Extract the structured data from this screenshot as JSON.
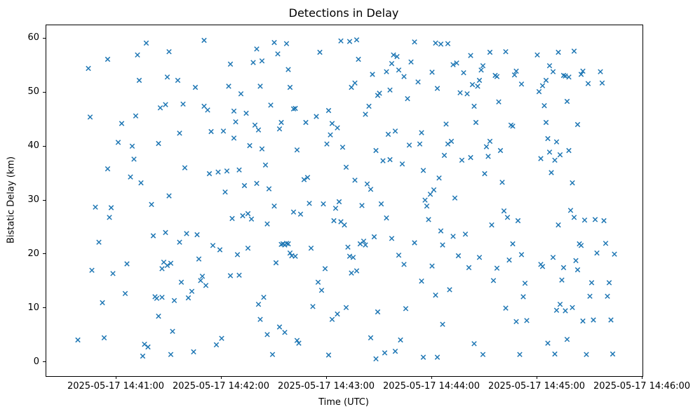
{
  "figure": {
    "background": "#ffffff"
  },
  "chart_data": {
    "type": "scatter",
    "title": "Detections in Delay",
    "xlabel": "Time (UTC)",
    "ylabel": "Bistatic Delay (km)",
    "marker": "x",
    "marker_color": "#1f77b4",
    "grid": false,
    "legend": null,
    "x_unit": "seconds after 2025-05-17 14:40:00 UTC",
    "xlim": [
      20,
      360
    ],
    "ylim": [
      -2.5,
      62.5
    ],
    "x_ticks": {
      "values": [
        60,
        120,
        180,
        240,
        300,
        360
      ],
      "labels": [
        "2025-05-17 14:41:00",
        "2025-05-17 14:42:00",
        "2025-05-17 14:43:00",
        "2025-05-17 14:44:00",
        "2025-05-17 14:45:00",
        "2025-05-17 14:46:00"
      ]
    },
    "y_ticks": {
      "values": [
        0,
        10,
        20,
        30,
        40,
        50,
        60
      ],
      "labels": [
        "0",
        "10",
        "20",
        "30",
        "40",
        "50",
        "60"
      ]
    },
    "points": [
      [
        38,
        4.2
      ],
      [
        44,
        54.5
      ],
      [
        45,
        45.5
      ],
      [
        46,
        17.1
      ],
      [
        48,
        28.8
      ],
      [
        50,
        22.3
      ],
      [
        52,
        11.1
      ],
      [
        53,
        4.6
      ],
      [
        55,
        56.2
      ],
      [
        55,
        35.9
      ],
      [
        56,
        26.9
      ],
      [
        57,
        28.7
      ],
      [
        58,
        16.5
      ],
      [
        61,
        40.8
      ],
      [
        63,
        44.3
      ],
      [
        65,
        12.8
      ],
      [
        66,
        18.3
      ],
      [
        68,
        34.4
      ],
      [
        69,
        40.1
      ],
      [
        70,
        37.7
      ],
      [
        71,
        45.7
      ],
      [
        72,
        57.0
      ],
      [
        73,
        52.3
      ],
      [
        74,
        33.3
      ],
      [
        75,
        1.2
      ],
      [
        76,
        3.4
      ],
      [
        77,
        59.2
      ],
      [
        78,
        2.9
      ],
      [
        80,
        29.3
      ],
      [
        81,
        23.5
      ],
      [
        82,
        12.2
      ],
      [
        83,
        11.9
      ],
      [
        84,
        40.6
      ],
      [
        84,
        8.6
      ],
      [
        85,
        47.2
      ],
      [
        86,
        17.4
      ],
      [
        86,
        12.1
      ],
      [
        87,
        18.6
      ],
      [
        88,
        47.8
      ],
      [
        88,
        24.1
      ],
      [
        89,
        52.9
      ],
      [
        89,
        18.0
      ],
      [
        90,
        57.6
      ],
      [
        90,
        30.9
      ],
      [
        91,
        18.4
      ],
      [
        91,
        1.5
      ],
      [
        92,
        5.8
      ],
      [
        93,
        11.5
      ],
      [
        95,
        52.3
      ],
      [
        96,
        42.5
      ],
      [
        96,
        22.3
      ],
      [
        97,
        14.9
      ],
      [
        98,
        47.9
      ],
      [
        99,
        36.1
      ],
      [
        100,
        23.9
      ],
      [
        101,
        12.0
      ],
      [
        103,
        13.2
      ],
      [
        104,
        2.0
      ],
      [
        105,
        51.0
      ],
      [
        106,
        23.7
      ],
      [
        107,
        19.2
      ],
      [
        108,
        15.2
      ],
      [
        109,
        16.0
      ],
      [
        110,
        59.7
      ],
      [
        110,
        47.5
      ],
      [
        111,
        14.3
      ],
      [
        112,
        46.8
      ],
      [
        113,
        35.0
      ],
      [
        114,
        42.8
      ],
      [
        115,
        21.7
      ],
      [
        117,
        3.3
      ],
      [
        118,
        35.3
      ],
      [
        119,
        20.9
      ],
      [
        120,
        4.5
      ],
      [
        121,
        42.9
      ],
      [
        122,
        31.6
      ],
      [
        123,
        35.5
      ],
      [
        124,
        51.2
      ],
      [
        125,
        55.3
      ],
      [
        125,
        16.1
      ],
      [
        126,
        26.7
      ],
      [
        127,
        46.6
      ],
      [
        127,
        41.6
      ],
      [
        128,
        44.6
      ],
      [
        129,
        20.0
      ],
      [
        130,
        35.7
      ],
      [
        130,
        16.2
      ],
      [
        131,
        49.8
      ],
      [
        132,
        27.2
      ],
      [
        133,
        32.8
      ],
      [
        134,
        46.2
      ],
      [
        135,
        27.6
      ],
      [
        135,
        21.2
      ],
      [
        136,
        40.2
      ],
      [
        137,
        26.6
      ],
      [
        138,
        55.6
      ],
      [
        139,
        44.0
      ],
      [
        140,
        58.1
      ],
      [
        140,
        33.2
      ],
      [
        141,
        43.1
      ],
      [
        141,
        10.8
      ],
      [
        142,
        51.2
      ],
      [
        142,
        8.0
      ],
      [
        143,
        55.9
      ],
      [
        143,
        39.6
      ],
      [
        144,
        12.1
      ],
      [
        145,
        36.6
      ],
      [
        146,
        25.7
      ],
      [
        146,
        5.2
      ],
      [
        147,
        32.2
      ],
      [
        148,
        47.7
      ],
      [
        149,
        1.5
      ],
      [
        150,
        59.3
      ],
      [
        150,
        29.0
      ],
      [
        151,
        18.5
      ],
      [
        152,
        57.2
      ],
      [
        153,
        43.3
      ],
      [
        153,
        6.6
      ],
      [
        154,
        44.5
      ],
      [
        154,
        21.9
      ],
      [
        155,
        22.0
      ],
      [
        156,
        21.8
      ],
      [
        156,
        5.6
      ],
      [
        157,
        59.1
      ],
      [
        157,
        22.1
      ],
      [
        158,
        54.3
      ],
      [
        158,
        22.0
      ],
      [
        159,
        51.0
      ],
      [
        159,
        20.3
      ],
      [
        160,
        19.8
      ],
      [
        161,
        47.0
      ],
      [
        161,
        27.9
      ],
      [
        162,
        47.1
      ],
      [
        162,
        19.7
      ],
      [
        163,
        39.4
      ],
      [
        163,
        4.1
      ],
      [
        164,
        3.6
      ],
      [
        165,
        27.5
      ],
      [
        167,
        33.9
      ],
      [
        168,
        44.5
      ],
      [
        169,
        34.3
      ],
      [
        170,
        29.5
      ],
      [
        171,
        21.2
      ],
      [
        172,
        10.4
      ],
      [
        174,
        45.6
      ],
      [
        175,
        14.9
      ],
      [
        176,
        57.5
      ],
      [
        177,
        13.4
      ],
      [
        178,
        29.4
      ],
      [
        179,
        17.4
      ],
      [
        180,
        40.5
      ],
      [
        181,
        46.7
      ],
      [
        181,
        1.4
      ],
      [
        182,
        42.2
      ],
      [
        183,
        44.3
      ],
      [
        183,
        8.0
      ],
      [
        184,
        26.3
      ],
      [
        185,
        28.6
      ],
      [
        186,
        43.5
      ],
      [
        186,
        9.0
      ],
      [
        187,
        29.8
      ],
      [
        188,
        59.6
      ],
      [
        188,
        26.1
      ],
      [
        189,
        39.9
      ],
      [
        190,
        25.5
      ],
      [
        191,
        36.2
      ],
      [
        191,
        10.2
      ],
      [
        192,
        21.4
      ],
      [
        193,
        59.5
      ],
      [
        193,
        19.7
      ],
      [
        194,
        51.0
      ],
      [
        194,
        16.6
      ],
      [
        195,
        19.5
      ],
      [
        196,
        51.8
      ],
      [
        196,
        33.8
      ],
      [
        197,
        59.8
      ],
      [
        197,
        17.0
      ],
      [
        198,
        56.2
      ],
      [
        199,
        22.0
      ],
      [
        200,
        29.1
      ],
      [
        201,
        22.5
      ],
      [
        202,
        46.0
      ],
      [
        202,
        21.8
      ],
      [
        203,
        33.1
      ],
      [
        204,
        47.5
      ],
      [
        205,
        32.1
      ],
      [
        205,
        4.6
      ],
      [
        206,
        53.4
      ],
      [
        207,
        23.3
      ],
      [
        208,
        39.3
      ],
      [
        208,
        0.7
      ],
      [
        209,
        49.5
      ],
      [
        209,
        9.4
      ],
      [
        210,
        49.9
      ],
      [
        211,
        29.4
      ],
      [
        212,
        37.4
      ],
      [
        213,
        1.8
      ],
      [
        214,
        53.9
      ],
      [
        214,
        26.8
      ],
      [
        215,
        42.3
      ],
      [
        216,
        50.5
      ],
      [
        216,
        37.6
      ],
      [
        217,
        55.4
      ],
      [
        217,
        23.0
      ],
      [
        218,
        57.0
      ],
      [
        219,
        42.9
      ],
      [
        219,
        2.1
      ],
      [
        220,
        56.7
      ],
      [
        221,
        54.2
      ],
      [
        221,
        19.9
      ],
      [
        222,
        4.2
      ],
      [
        223,
        36.8
      ],
      [
        224,
        53.0
      ],
      [
        224,
        18.2
      ],
      [
        225,
        10.0
      ],
      [
        226,
        48.9
      ],
      [
        227,
        40.3
      ],
      [
        228,
        55.7
      ],
      [
        230,
        59.4
      ],
      [
        230,
        22.2
      ],
      [
        232,
        52.0
      ],
      [
        233,
        40.5
      ],
      [
        234,
        42.6
      ],
      [
        234,
        15.1
      ],
      [
        235,
        35.6
      ],
      [
        235,
        1.0
      ],
      [
        236,
        30.1
      ],
      [
        237,
        29.0
      ],
      [
        238,
        26.5
      ],
      [
        239,
        31.2
      ],
      [
        240,
        53.8
      ],
      [
        240,
        17.9
      ],
      [
        241,
        32.0
      ],
      [
        242,
        59.2
      ],
      [
        242,
        12.5
      ],
      [
        243,
        50.8
      ],
      [
        243,
        1.0
      ],
      [
        244,
        34.2
      ],
      [
        245,
        59.0
      ],
      [
        245,
        24.4
      ],
      [
        246,
        21.8
      ],
      [
        246,
        7.1
      ],
      [
        247,
        38.4
      ],
      [
        248,
        44.2
      ],
      [
        249,
        59.1
      ],
      [
        249,
        40.5
      ],
      [
        250,
        13.5
      ],
      [
        251,
        41.0
      ],
      [
        252,
        55.2
      ],
      [
        252,
        23.4
      ],
      [
        253,
        30.5
      ],
      [
        254,
        55.5
      ],
      [
        255,
        19.8
      ],
      [
        256,
        50.0
      ],
      [
        257,
        37.5
      ],
      [
        258,
        53.7
      ],
      [
        259,
        23.8
      ],
      [
        260,
        49.8
      ],
      [
        261,
        17.6
      ],
      [
        262,
        56.9
      ],
      [
        262,
        38.0
      ],
      [
        263,
        51.5
      ],
      [
        264,
        47.5
      ],
      [
        264,
        3.5
      ],
      [
        265,
        44.5
      ],
      [
        266,
        51.2
      ],
      [
        267,
        52.3
      ],
      [
        267,
        19.5
      ],
      [
        268,
        54.2
      ],
      [
        269,
        55.0
      ],
      [
        269,
        1.5
      ],
      [
        270,
        35.0
      ],
      [
        271,
        40.0
      ],
      [
        272,
        38.2
      ],
      [
        273,
        57.5
      ],
      [
        273,
        41.0
      ],
      [
        274,
        25.5
      ],
      [
        275,
        15.2
      ],
      [
        276,
        53.2
      ],
      [
        277,
        53.0
      ],
      [
        277,
        17.5
      ],
      [
        278,
        48.3
      ],
      [
        279,
        39.3
      ],
      [
        280,
        33.4
      ],
      [
        281,
        28.1
      ],
      [
        282,
        57.6
      ],
      [
        282,
        10.1
      ],
      [
        283,
        26.9
      ],
      [
        284,
        19.0
      ],
      [
        285,
        44.0
      ],
      [
        286,
        43.8
      ],
      [
        286,
        22.0
      ],
      [
        287,
        53.3
      ],
      [
        288,
        54.0
      ],
      [
        288,
        7.6
      ],
      [
        289,
        26.3
      ],
      [
        290,
        1.5
      ],
      [
        291,
        51.6
      ],
      [
        291,
        20.0
      ],
      [
        292,
        12.2
      ],
      [
        293,
        14.7
      ],
      [
        294,
        7.8
      ],
      [
        300,
        57.0
      ],
      [
        301,
        50.2
      ],
      [
        302,
        37.8
      ],
      [
        302,
        18.2
      ],
      [
        303,
        51.3
      ],
      [
        303,
        17.8
      ],
      [
        304,
        47.6
      ],
      [
        305,
        52.3
      ],
      [
        305,
        44.5
      ],
      [
        306,
        41.5
      ],
      [
        306,
        3.6
      ],
      [
        307,
        55.0
      ],
      [
        307,
        39.0
      ],
      [
        308,
        35.2
      ],
      [
        309,
        53.9
      ],
      [
        309,
        19.5
      ],
      [
        310,
        37.5
      ],
      [
        310,
        1.6
      ],
      [
        311,
        40.9
      ],
      [
        311,
        9.7
      ],
      [
        312,
        57.5
      ],
      [
        312,
        25.5
      ],
      [
        313,
        38.5
      ],
      [
        313,
        10.8
      ],
      [
        314,
        15.3
      ],
      [
        315,
        53.2
      ],
      [
        315,
        17.6
      ],
      [
        316,
        53.1
      ],
      [
        316,
        9.6
      ],
      [
        317,
        48.4
      ],
      [
        317,
        4.3
      ],
      [
        318,
        52.9
      ],
      [
        318,
        39.3
      ],
      [
        319,
        28.2
      ],
      [
        320,
        33.3
      ],
      [
        320,
        10.2
      ],
      [
        321,
        57.7
      ],
      [
        321,
        26.9
      ],
      [
        322,
        18.9
      ],
      [
        323,
        44.1
      ],
      [
        323,
        17.2
      ],
      [
        324,
        22.0
      ],
      [
        325,
        53.4
      ],
      [
        325,
        21.7
      ],
      [
        326,
        54.0
      ],
      [
        326,
        7.7
      ],
      [
        327,
        26.4
      ],
      [
        328,
        1.5
      ],
      [
        329,
        51.7
      ],
      [
        330,
        12.3
      ],
      [
        331,
        14.8
      ],
      [
        332,
        7.9
      ],
      [
        333,
        26.5
      ],
      [
        334,
        20.3
      ],
      [
        336,
        53.9
      ],
      [
        337,
        51.8
      ],
      [
        338,
        26.3
      ],
      [
        339,
        22.1
      ],
      [
        340,
        12.3
      ],
      [
        341,
        14.8
      ],
      [
        342,
        7.9
      ],
      [
        343,
        1.6
      ],
      [
        344,
        20.1
      ]
    ]
  }
}
